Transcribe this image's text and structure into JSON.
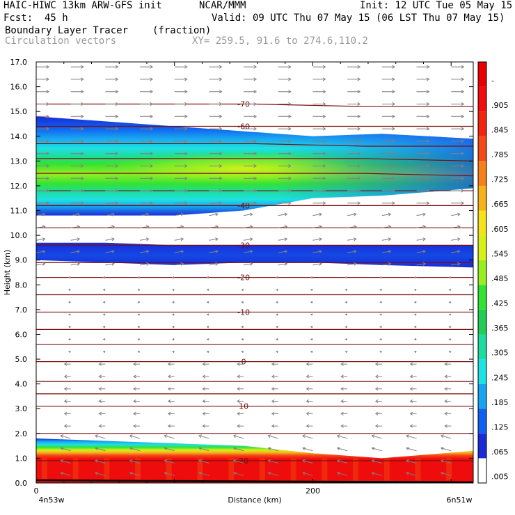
{
  "header": {
    "model": "HAIC-HIWC 13km ARW-GFS init",
    "org": "NCAR/MMM",
    "init": "Init: 12 UTC Tue 05 May 15",
    "fcst_label": "Fcst:",
    "fcst_value": "45 h",
    "valid": "Valid: 09 UTC Thu 07 May 15 (06 LST Thu 07 May 15)",
    "field": "Boundary Layer Tracer",
    "field_units": "(fraction)",
    "vectors": "Circulation vectors",
    "xy": "XY= 259.5, 91.6 to 274.6,110.2"
  },
  "chart_data": {
    "type": "heatmap",
    "xlabel": "Distance (km)",
    "ylabel": "Height (km)",
    "x_tick_labels": [
      "0",
      "200"
    ],
    "x_end_labels": [
      "4n53w",
      "6n51w"
    ],
    "xlim": [
      0,
      316
    ],
    "ylim": [
      0,
      17
    ],
    "y_ticks": [
      "0.0",
      "1.0",
      "2.0",
      "3.0",
      "4.0",
      "5.0",
      "6.0",
      "7.0",
      "8.0",
      "9.0",
      "10.0",
      "11.0",
      "12.0",
      "13.0",
      "14.0",
      "15.0",
      "16.0",
      "17.0"
    ],
    "colorbar": {
      "labels": [
        ".005",
        ".065",
        ".125",
        ".185",
        ".245",
        ".305",
        ".365",
        ".425",
        ".485",
        ".545",
        ".605",
        ".665",
        ".725",
        ".785",
        ".845",
        ".905",
        "-"
      ],
      "colors": [
        "#ffffff",
        "#1a2bd6",
        "#1060f0",
        "#19a4f0",
        "#1ee2e2",
        "#1edca0",
        "#22cc55",
        "#33e233",
        "#99ee22",
        "#d6f01a",
        "#f4e21c",
        "#f6b21c",
        "#f6801c",
        "#f44a18",
        "#f02410",
        "#ee0c0c",
        "#e80000"
      ]
    },
    "tracer_layers": [
      {
        "x": [
          0,
          50,
          100,
          150,
          200,
          250,
          316
        ],
        "y_bottom": [
          10.8,
          10.8,
          10.8,
          11.0,
          11.5,
          11.6,
          11.9
        ],
        "y_top": [
          14.8,
          14.6,
          14.4,
          14.2,
          14.0,
          14.1,
          13.9
        ],
        "max_value": 0.42,
        "peak_x": 150,
        "peak_y": 12.7
      },
      {
        "x": [
          0,
          50,
          100,
          150,
          200,
          250,
          316
        ],
        "y_bottom": [
          9.0,
          8.9,
          8.8,
          8.9,
          8.9,
          8.8,
          8.7
        ],
        "y_top": [
          9.7,
          9.7,
          9.6,
          9.6,
          9.6,
          9.6,
          9.6
        ],
        "max_value": 0.07,
        "peak_x": 150,
        "peak_y": 9.2
      },
      {
        "x": [
          0,
          50,
          100,
          150,
          200,
          250,
          316
        ],
        "y_bottom": [
          0.0,
          0.0,
          0.0,
          0.0,
          0.0,
          0.0,
          0.0
        ],
        "y_top": [
          1.8,
          1.7,
          1.6,
          1.5,
          1.2,
          1.0,
          1.3
        ],
        "max_value": 1.0,
        "peak_x": 150,
        "peak_y": 0.4
      }
    ],
    "temperature_contours": [
      {
        "label": "-70",
        "y": [
          15.3,
          15.3,
          15.3,
          15.2,
          15.2
        ]
      },
      {
        "label": "-60",
        "y": [
          14.4,
          14.4,
          14.4,
          14.4,
          14.4
        ]
      },
      {
        "label": "",
        "y": [
          13.7,
          13.7,
          13.7,
          13.6,
          13.6
        ]
      },
      {
        "label": "",
        "y": [
          13.1,
          13.1,
          13.1,
          13.1,
          13.0
        ]
      },
      {
        "label": "",
        "y": [
          12.5,
          12.5,
          12.5,
          12.5,
          12.4
        ]
      },
      {
        "label": "",
        "y": [
          11.8,
          11.8,
          11.8,
          11.8,
          11.8
        ]
      },
      {
        "label": "-40",
        "y": [
          11.2,
          11.2,
          11.2,
          11.2,
          11.2
        ]
      },
      {
        "label": "",
        "y": [
          10.3,
          10.3,
          10.3,
          10.3,
          10.3
        ]
      },
      {
        "label": "-30",
        "y": [
          9.6,
          9.6,
          9.6,
          9.6,
          9.6
        ]
      },
      {
        "label": "",
        "y": [
          8.9,
          8.9,
          8.9,
          8.9,
          8.9
        ]
      },
      {
        "label": "-20",
        "y": [
          8.3,
          8.3,
          8.3,
          8.3,
          8.3
        ]
      },
      {
        "label": "",
        "y": [
          7.6,
          7.6,
          7.6,
          7.6,
          7.6
        ]
      },
      {
        "label": "-10",
        "y": [
          6.9,
          6.9,
          6.9,
          6.9,
          6.9
        ]
      },
      {
        "label": "",
        "y": [
          6.2,
          6.2,
          6.2,
          6.2,
          6.2
        ]
      },
      {
        "label": "",
        "y": [
          5.6,
          5.6,
          5.6,
          5.6,
          5.6
        ]
      },
      {
        "label": "0",
        "y": [
          4.9,
          4.9,
          4.9,
          4.9,
          4.9
        ]
      },
      {
        "label": "",
        "y": [
          4.1,
          4.1,
          4.1,
          4.1,
          4.1
        ]
      },
      {
        "label": "",
        "y": [
          3.6,
          3.6,
          3.6,
          3.6,
          3.6
        ]
      },
      {
        "label": "10",
        "y": [
          3.1,
          3.1,
          3.1,
          3.1,
          3.1
        ]
      },
      {
        "label": "",
        "y": [
          2.0,
          2.0,
          2.0,
          2.0,
          2.0
        ]
      },
      {
        "label": "20",
        "y": [
          0.9,
          0.9,
          0.9,
          0.9,
          0.9
        ]
      }
    ],
    "wind_vectors": {
      "x_spacing_km": 25,
      "layers": [
        {
          "y_from": 11.0,
          "y_to": 17.0,
          "u": 1.0,
          "w": 0.0
        },
        {
          "y_from": 8.5,
          "y_to": 11.0,
          "u": 0.7,
          "w": 0.05
        },
        {
          "y_from": 5.0,
          "y_to": 8.5,
          "u": -0.15,
          "w": 0.0
        },
        {
          "y_from": 1.9,
          "y_to": 5.0,
          "u": -0.5,
          "w": 0.0
        },
        {
          "y_from": 0.0,
          "y_to": 1.9,
          "u": -0.8,
          "w": 0.1
        }
      ]
    },
    "terrain_color": "#000000",
    "contour_color": "#7a0f0f",
    "vector_color": "#808080"
  }
}
